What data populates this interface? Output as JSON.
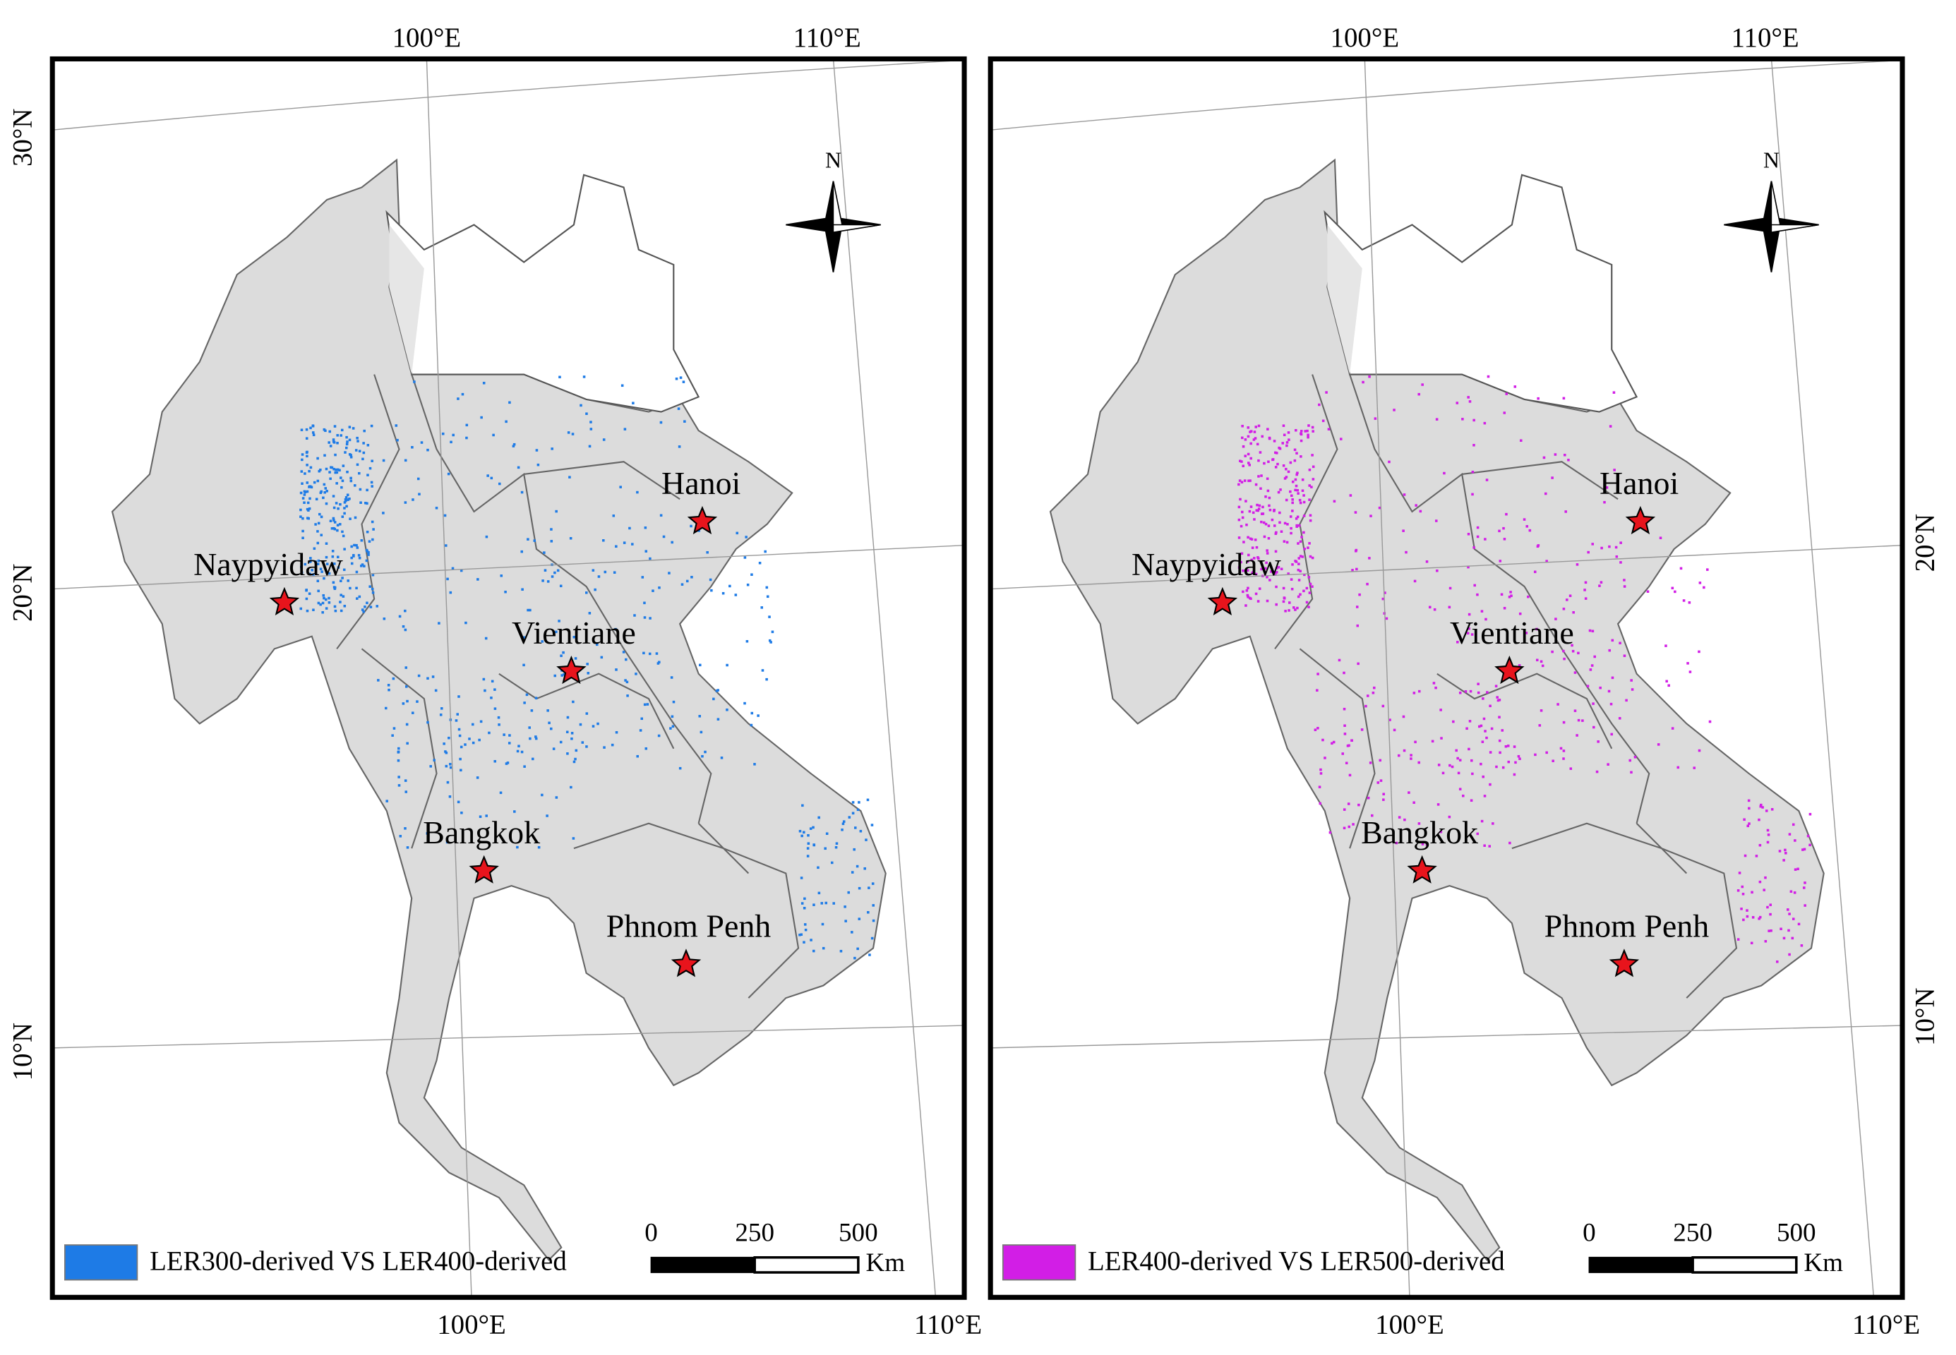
{
  "panels": [
    {
      "top_labels": [
        "100°E",
        "110°E"
      ],
      "bottom_labels": [
        "100°E",
        "110°E"
      ],
      "left_labels": [
        "30°N",
        "20°N",
        "10°N"
      ],
      "right_labels": [],
      "north": "N",
      "cities": [
        "Naypyidaw",
        "Vientiane",
        "Hanoi",
        "Bangkok",
        "Phnom Penh"
      ],
      "legend": {
        "label": "LER300-derived VS LER400-derived",
        "color": "#1e7be6"
      },
      "scale": {
        "ticks": [
          "0",
          "250",
          "500"
        ],
        "unit": "Km"
      }
    },
    {
      "top_labels": [
        "100°E",
        "110°E"
      ],
      "bottom_labels": [
        "100°E",
        "110°E"
      ],
      "left_labels": [],
      "right_labels": [
        "20°N",
        "10°N"
      ],
      "north": "N",
      "cities": [
        "Naypyidaw",
        "Vientiane",
        "Hanoi",
        "Bangkok",
        "Phnom Penh"
      ],
      "legend": {
        "label": "LER400-derived VS LER500-derived",
        "color": "#d21ee6"
      },
      "scale": {
        "ticks": [
          "0",
          "250",
          "500"
        ],
        "unit": "Km"
      }
    }
  ]
}
